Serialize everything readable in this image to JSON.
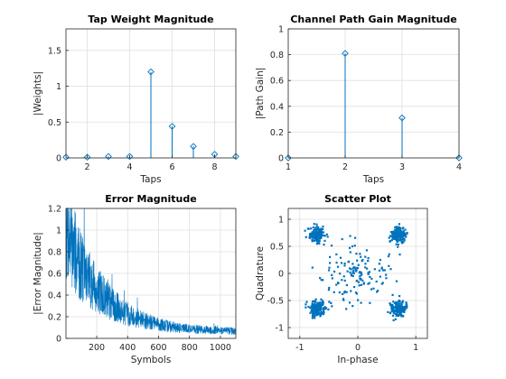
{
  "colors": {
    "series": "#0072bd",
    "axis": "#262626",
    "grid": "#dfdfdf",
    "background": "#ffffff"
  },
  "chart_data": [
    {
      "type": "stem",
      "title": "Tap Weight Magnitude",
      "xlabel": "Taps",
      "ylabel": "|Weights|",
      "xlim": [
        1,
        9
      ],
      "ylim": [
        0,
        1.8
      ],
      "xticks": [
        2,
        4,
        6,
        8
      ],
      "yticks": [
        0,
        0.5,
        1,
        1.5
      ],
      "ytick_labels": [
        "0",
        "0.5",
        "1",
        "1.5"
      ],
      "grid": true,
      "marker": "diamond",
      "x": [
        1,
        2,
        3,
        4,
        5,
        6,
        7,
        8,
        9
      ],
      "y": [
        0.01,
        0.01,
        0.02,
        0.02,
        1.2,
        0.44,
        0.16,
        0.05,
        0.02
      ]
    },
    {
      "type": "stem",
      "title": "Channel Path Gain Magnitude",
      "xlabel": "Taps",
      "ylabel": "|Path Gain|",
      "xlim": [
        1,
        4
      ],
      "ylim": [
        0,
        1
      ],
      "xticks": [
        1,
        2,
        3,
        4
      ],
      "yticks": [
        0,
        0.2,
        0.4,
        0.6,
        0.8,
        1
      ],
      "ytick_labels": [
        "0",
        "0.2",
        "0.4",
        "0.6",
        "0.8",
        "1"
      ],
      "grid": true,
      "marker": "diamond",
      "x": [
        1,
        2,
        3,
        4
      ],
      "y": [
        0,
        0.81,
        0.31,
        0
      ]
    },
    {
      "type": "line",
      "title": "Error Magnitude",
      "xlabel": "Symbols",
      "ylabel": "|Error Magnitude|",
      "xlim": [
        1,
        1100
      ],
      "ylim": [
        0,
        1.2
      ],
      "xticks": [
        200,
        400,
        600,
        800,
        1000
      ],
      "yticks": [
        0,
        0.2,
        0.4,
        0.6,
        0.8,
        1,
        1.2
      ],
      "ytick_labels": [
        "0",
        "0.2",
        "0.4",
        "0.6",
        "0.8",
        "1",
        "1.2"
      ],
      "grid": true,
      "generator": {
        "n": 1100,
        "start": 1.0,
        "floor": 0.06,
        "decay_tau": 230,
        "spread": 0.55,
        "seed": 7
      }
    },
    {
      "type": "scatter",
      "title": "Scatter Plot",
      "xlabel": "In-phase",
      "ylabel": "Quadrature",
      "xlim": [
        -1.2,
        1.2
      ],
      "ylim": [
        -1.2,
        1.2
      ],
      "xticks": [
        -1,
        0,
        1
      ],
      "yticks": [
        -1,
        -0.5,
        0,
        0.5,
        1
      ],
      "ytick_labels": [
        "-1",
        "-0.5",
        "0",
        "0.5",
        "1"
      ],
      "grid": true,
      "marker": "point",
      "clusters": [
        {
          "center": [
            -0.7,
            0.7
          ],
          "count": 150,
          "sigma": 0.07
        },
        {
          "center": [
            0.7,
            0.7
          ],
          "count": 150,
          "sigma": 0.07
        },
        {
          "center": [
            -0.7,
            -0.65
          ],
          "count": 150,
          "sigma": 0.07
        },
        {
          "center": [
            0.7,
            -0.65
          ],
          "count": 150,
          "sigma": 0.07
        }
      ],
      "transient": {
        "count": 140,
        "seed": 11
      }
    }
  ]
}
